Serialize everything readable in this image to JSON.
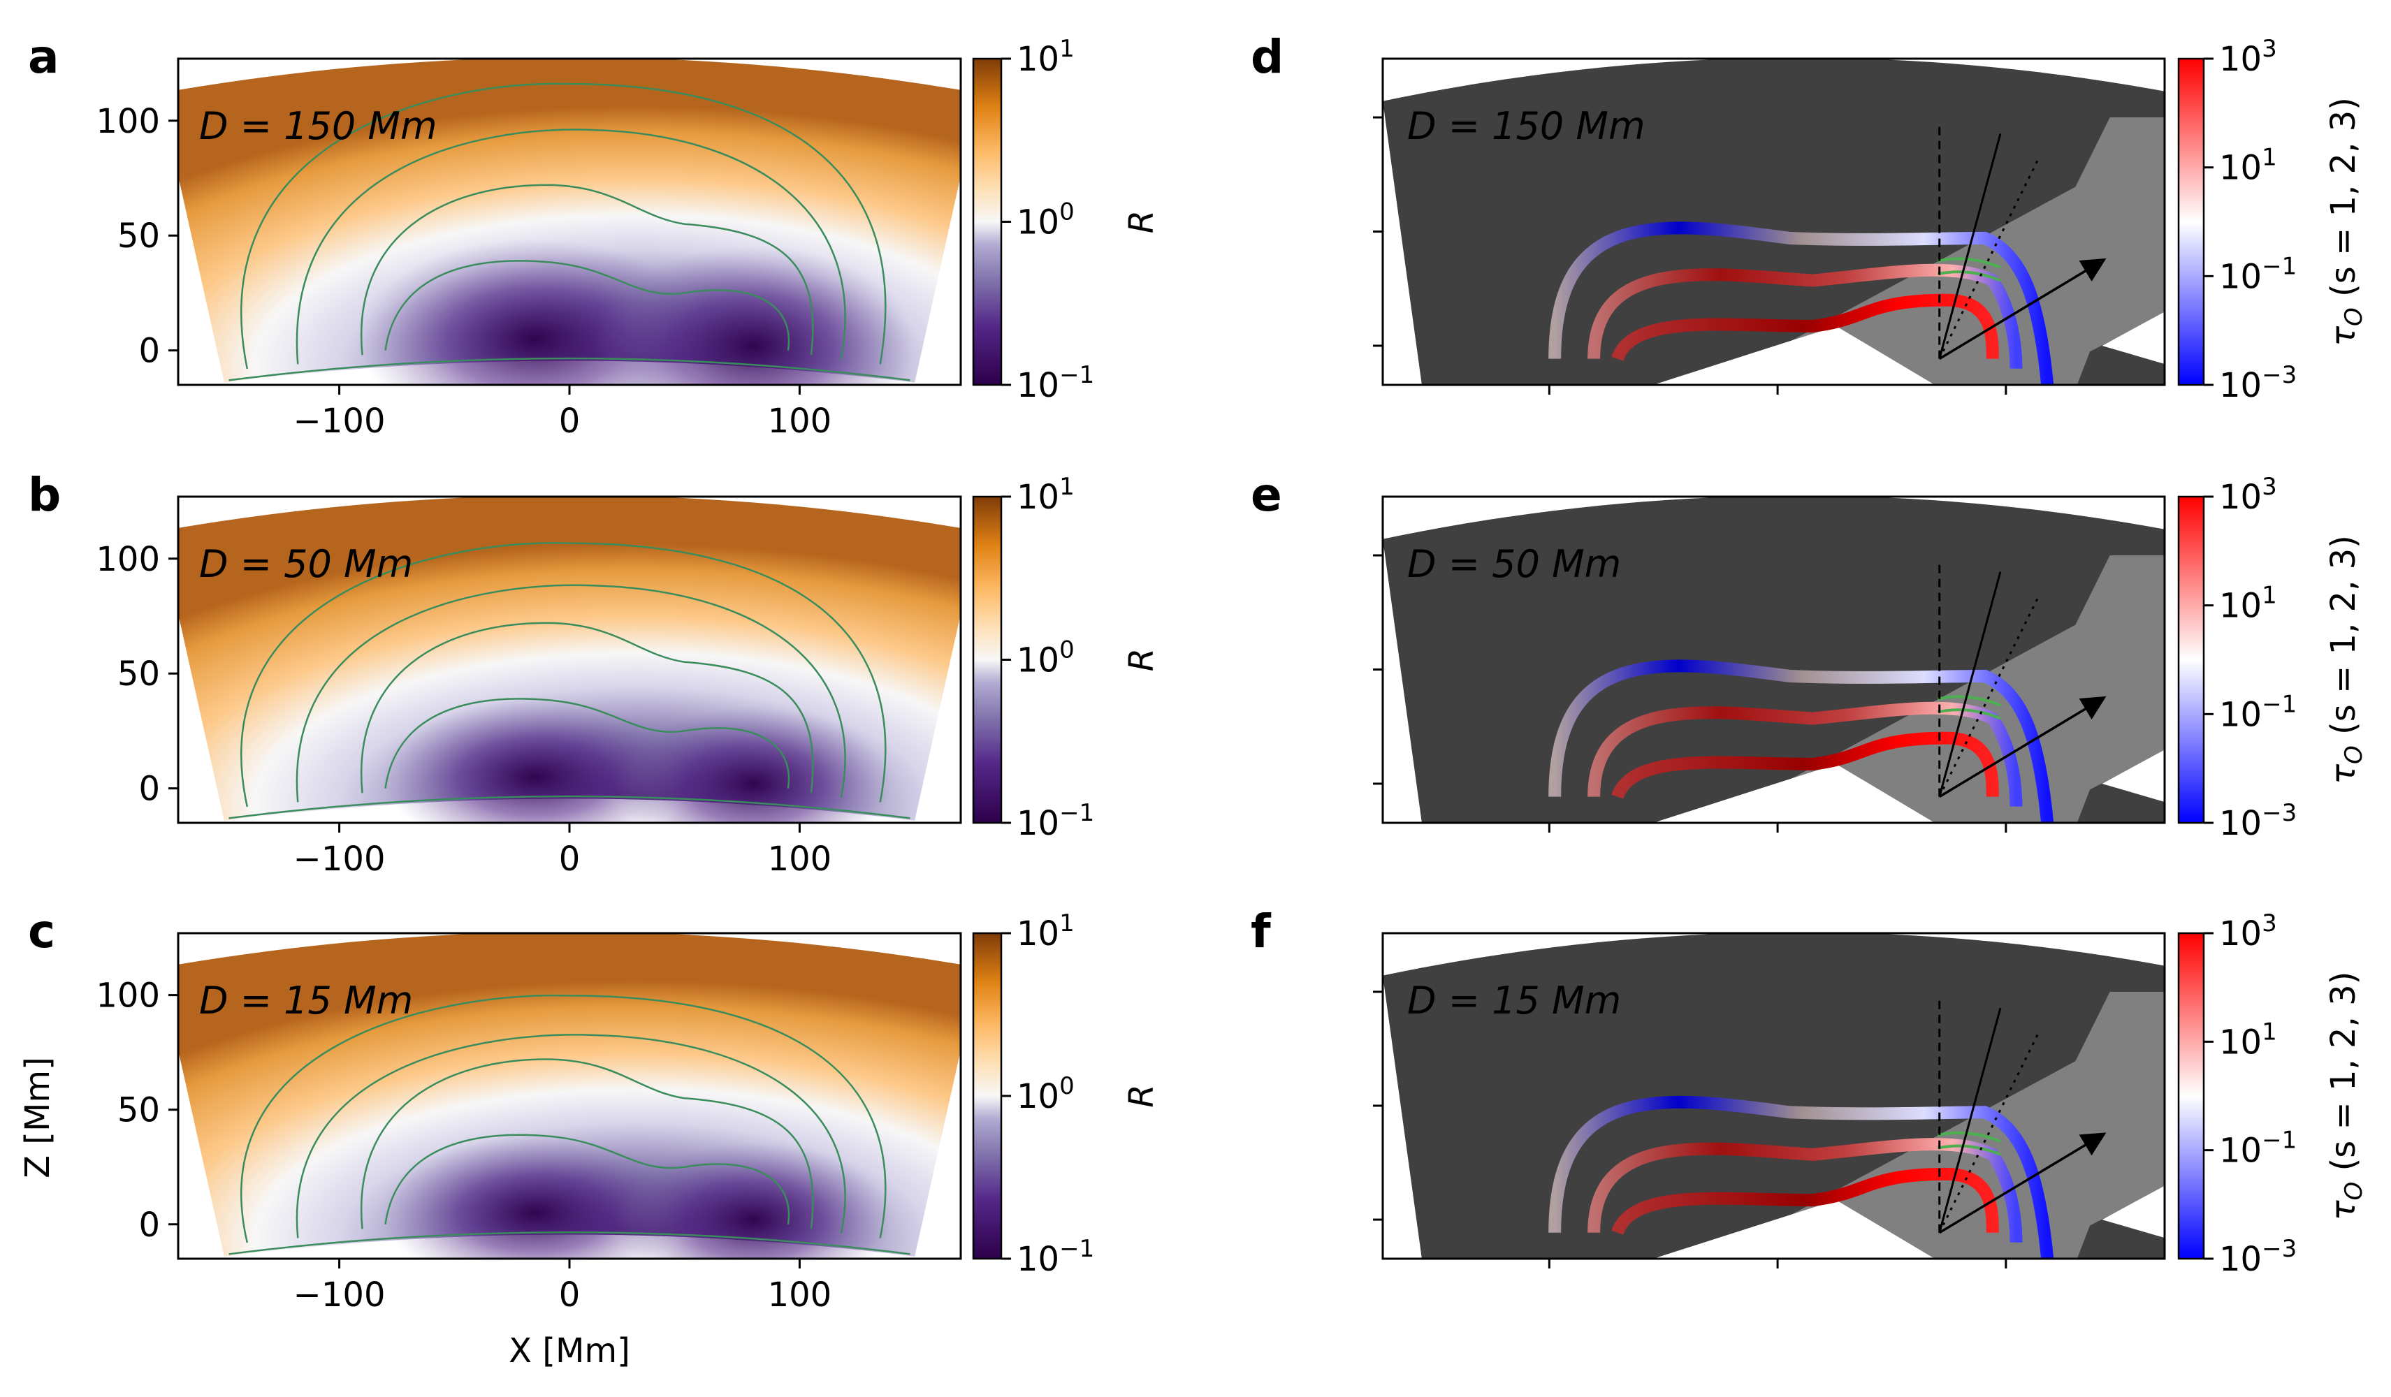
{
  "panels": [
    {
      "letter": "a",
      "kind": "R-map",
      "label": "D = 150 Mm"
    },
    {
      "letter": "b",
      "kind": "R-map",
      "label": "D = 50 Mm"
    },
    {
      "letter": "c",
      "kind": "R-map",
      "label": "D = 15 Mm"
    },
    {
      "letter": "d",
      "kind": "tau-map",
      "label": "D = 150 Mm"
    },
    {
      "letter": "e",
      "kind": "tau-map",
      "label": "D = 50 Mm"
    },
    {
      "letter": "f",
      "kind": "tau-map",
      "label": "D = 15 Mm"
    }
  ],
  "axes": {
    "xlabel": "X [Mm]",
    "ylabel": "Z [Mm]",
    "xticks": [
      "−100",
      "0",
      "100"
    ],
    "yticks": [
      "0",
      "50",
      "100"
    ]
  },
  "colorbars": {
    "left": {
      "label": "R",
      "top_base": "10",
      "top_exp": "1",
      "mid_base": "10",
      "mid_exp": "0",
      "bot_base": "10",
      "bot_exp": "−1"
    },
    "right": {
      "label": "τ",
      "label_sub": "O",
      "label_rest": " (s = 1, 2, 3)",
      "t1_base": "10",
      "t1_exp": "3",
      "t2_base": "10",
      "t2_exp": "1",
      "t3_base": "10",
      "t3_exp": "−1",
      "t4_base": "10",
      "t4_exp": "−3"
    }
  },
  "colors": {
    "orange_dark": "#7f3b08",
    "orange": "#e08214",
    "orange_light": "#fdb863",
    "white": "#f7f7f7",
    "purple_light": "#b2abd2",
    "purple": "#8073ac",
    "purple_dark": "#2d004b",
    "contour": "#3a8c5c",
    "blue": "#0000ff",
    "red": "#ff0000",
    "darkred": "#8b0000",
    "gray_dark": "#404040",
    "gray_mid": "#808080"
  },
  "chart_data": [
    {
      "type": "heatmap",
      "panel": "a",
      "quantity": "R",
      "scale": "log",
      "clim": [
        0.1,
        10
      ],
      "xlim": [
        -170,
        170
      ],
      "ylim": [
        -15,
        127
      ],
      "annotation": "D = 150 Mm"
    },
    {
      "type": "heatmap",
      "panel": "b",
      "quantity": "R",
      "scale": "log",
      "clim": [
        0.1,
        10
      ],
      "xlim": [
        -170,
        170
      ],
      "ylim": [
        -15,
        127
      ],
      "annotation": "D = 50 Mm"
    },
    {
      "type": "heatmap",
      "panel": "c",
      "quantity": "R",
      "scale": "log",
      "clim": [
        0.1,
        10
      ],
      "xlim": [
        -170,
        170
      ],
      "ylim": [
        -15,
        127
      ],
      "annotation": "D = 15 Mm",
      "xlabel": "X [Mm]",
      "ylabel": "Z [Mm]"
    },
    {
      "type": "heatmap",
      "panel": "d",
      "quantity": "τO (s = 1, 2, 3)",
      "scale": "log",
      "clim": [
        0.001,
        1000
      ],
      "annotation": "D = 150 Mm"
    },
    {
      "type": "heatmap",
      "panel": "e",
      "quantity": "τO (s = 1, 2, 3)",
      "scale": "log",
      "clim": [
        0.001,
        1000
      ],
      "annotation": "D = 50 Mm"
    },
    {
      "type": "heatmap",
      "panel": "f",
      "quantity": "τO (s = 1, 2, 3)",
      "scale": "log",
      "clim": [
        0.001,
        1000
      ],
      "annotation": "D = 15 Mm"
    }
  ]
}
